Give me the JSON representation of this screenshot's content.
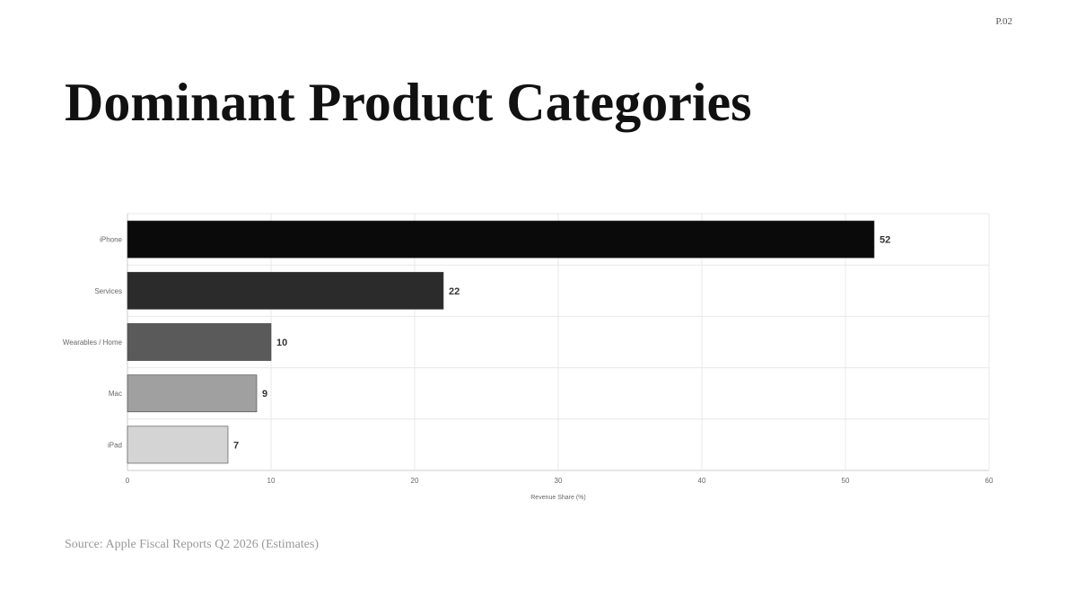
{
  "page_number": "P.02",
  "title": "Dominant Product Categories",
  "chart_data": {
    "type": "bar",
    "orientation": "horizontal",
    "categories": [
      "iPhone",
      "Services",
      "Wearables / Home",
      "Mac",
      "iPad"
    ],
    "values": [
      52,
      22,
      10,
      9,
      7
    ],
    "colors": [
      "#0a0a0a",
      "#2b2b2b",
      "#5a5a5a",
      "#a0a0a0",
      "#d4d4d4"
    ],
    "x_label": "Revenue Share (%)",
    "xlim": [
      0,
      60
    ],
    "xticks": [
      0,
      10,
      20,
      30,
      40,
      50,
      60
    ],
    "grid": true
  },
  "source": "Source: Apple Fiscal Reports Q2 2026 (Estimates)"
}
